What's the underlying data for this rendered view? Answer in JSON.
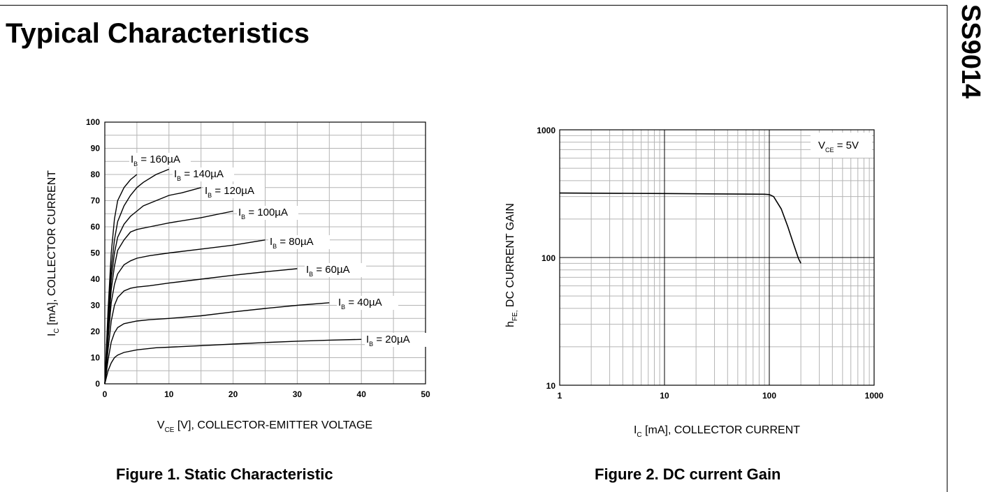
{
  "page": {
    "title": "Typical Characteristics",
    "part_number": "SS9014"
  },
  "figures": [
    {
      "caption": "Figure 1. Static Characteristic",
      "ylabel": {
        "main": "I",
        "sub": "C",
        "rest": " [mA], COLLECTOR CURRENT"
      },
      "xlabel": {
        "main": "V",
        "sub": "CE",
        "rest": " [V], COLLECTOR-EMITTER VOLTAGE"
      },
      "x_ticks": [
        "0",
        "10",
        "20",
        "30",
        "40",
        "50"
      ],
      "y_ticks": [
        "0",
        "10",
        "20",
        "30",
        "40",
        "50",
        "60",
        "70",
        "80",
        "90",
        "100"
      ],
      "curve_labels": [
        {
          "main": "I",
          "sub": "B",
          "rest": " = 160µA"
        },
        {
          "main": "I",
          "sub": "B",
          "rest": " = 140µA"
        },
        {
          "main": "I",
          "sub": "B",
          "rest": " = 120µA"
        },
        {
          "main": "I",
          "sub": "B",
          "rest": " = 100µA"
        },
        {
          "main": "I",
          "sub": "B",
          "rest": " = 80µA"
        },
        {
          "main": "I",
          "sub": "B",
          "rest": " = 60µA"
        },
        {
          "main": "I",
          "sub": "B",
          "rest": " = 40µA"
        },
        {
          "main": "I",
          "sub": "B",
          "rest": " = 20µA"
        }
      ]
    },
    {
      "caption": "Figure 2. DC current Gain",
      "ylabel": {
        "main": "h",
        "sub": "FE,",
        "rest": " DC CURRENT GAIN"
      },
      "xlabel": {
        "main": "I",
        "sub": "C",
        "rest": " [mA], COLLECTOR CURRENT"
      },
      "x_ticks": [
        "1",
        "10",
        "100",
        "1000"
      ],
      "y_ticks": [
        "10",
        "100",
        "1000"
      ],
      "legend": {
        "main": "V",
        "sub": "CE",
        "rest": " = 5V"
      }
    }
  ],
  "chart_data": [
    {
      "type": "line",
      "title": "",
      "xlabel": "V_CE [V], COLLECTOR-EMITTER VOLTAGE",
      "ylabel": "I_C [mA], COLLECTOR CURRENT",
      "xlim": [
        0,
        50
      ],
      "ylim": [
        0,
        100
      ],
      "x_scale": "linear",
      "y_scale": "linear",
      "grid": true,
      "series": [
        {
          "name": "I_B = 160µA",
          "x": [
            0,
            0.5,
            1,
            1.5,
            2,
            3,
            4,
            5
          ],
          "y": [
            0,
            28,
            50,
            63,
            70,
            75,
            78,
            80
          ]
        },
        {
          "name": "I_B = 140µA",
          "x": [
            0,
            0.5,
            1,
            1.5,
            2,
            3,
            4,
            5,
            6,
            8,
            10
          ],
          "y": [
            0,
            24,
            44,
            55,
            62,
            68,
            72,
            75,
            77,
            80,
            82
          ]
        },
        {
          "name": "I_B = 120µA",
          "x": [
            0,
            0.5,
            1,
            1.5,
            2,
            3,
            4,
            5,
            6,
            8,
            10,
            12,
            15
          ],
          "y": [
            0,
            22,
            40,
            50,
            56,
            61,
            64,
            66,
            68,
            70,
            72,
            73,
            75
          ]
        },
        {
          "name": "I_B = 100µA",
          "x": [
            0,
            0.5,
            1,
            1.5,
            2,
            3,
            4,
            5,
            7,
            10,
            15,
            20
          ],
          "y": [
            0,
            20,
            36,
            45,
            51,
            55,
            58,
            59,
            60,
            61.5,
            63.5,
            66
          ]
        },
        {
          "name": "I_B = 80µA",
          "x": [
            0,
            0.5,
            1,
            1.5,
            2,
            3,
            4,
            5,
            7,
            10,
            15,
            20,
            25
          ],
          "y": [
            0,
            17,
            31,
            38,
            42,
            45.5,
            47,
            48,
            49,
            50,
            51.5,
            53,
            55
          ]
        },
        {
          "name": "I_B = 60µA",
          "x": [
            0,
            0.5,
            1,
            1.5,
            2,
            3,
            4,
            5,
            7,
            10,
            15,
            20,
            25,
            30
          ],
          "y": [
            0,
            13,
            24,
            30,
            33,
            35.5,
            36.5,
            37,
            37.5,
            38.5,
            40,
            41.5,
            42.8,
            44
          ]
        },
        {
          "name": "I_B = 40µA",
          "x": [
            0,
            0.5,
            1,
            1.5,
            2,
            3,
            5,
            7,
            10,
            15,
            20,
            25,
            30,
            35
          ],
          "y": [
            0,
            9,
            16,
            19.5,
            21.5,
            23,
            24,
            24.5,
            25,
            26,
            27.5,
            28.8,
            30,
            31
          ]
        },
        {
          "name": "I_B = 20µA",
          "x": [
            0,
            0.5,
            1,
            1.5,
            2,
            3,
            5,
            8,
            10,
            15,
            20,
            25,
            30,
            35,
            40
          ],
          "y": [
            0,
            5,
            8,
            10,
            11,
            12,
            13,
            13.8,
            14,
            14.6,
            15.2,
            15.8,
            16.3,
            16.7,
            17
          ]
        }
      ]
    },
    {
      "type": "line",
      "title": "",
      "xlabel": "I_C [mA], COLLECTOR CURRENT",
      "ylabel": "h_FE, DC CURRENT GAIN",
      "xlim": [
        1,
        1000
      ],
      "ylim": [
        10,
        1000
      ],
      "x_scale": "log",
      "y_scale": "log",
      "grid": true,
      "legend": "top-right",
      "series": [
        {
          "name": "V_CE = 5V",
          "x": [
            1,
            10,
            50,
            90,
            100,
            110,
            130,
            150,
            170,
            190,
            200
          ],
          "y": [
            320,
            317,
            314,
            313,
            311,
            300,
            240,
            175,
            128,
            98,
            90
          ]
        }
      ]
    }
  ]
}
